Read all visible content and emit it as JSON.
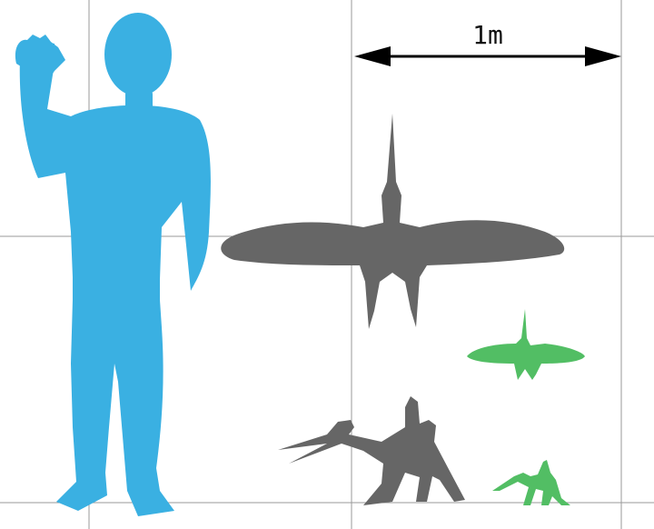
{
  "scale_bar": {
    "label": "1m"
  },
  "colors": {
    "grid": "#9a9a9a",
    "human": "#3ab0e2",
    "large_pterosaur": "#666666",
    "small_pterosaur": "#52be64",
    "arrow": "#000000"
  },
  "figures": [
    {
      "name": "human",
      "color_key": "human"
    },
    {
      "name": "large-pterosaur-flying",
      "color_key": "large_pterosaur"
    },
    {
      "name": "large-pterosaur-standing",
      "color_key": "large_pterosaur"
    },
    {
      "name": "small-pterosaur-flying",
      "color_key": "small_pterosaur"
    },
    {
      "name": "small-pterosaur-standing",
      "color_key": "small_pterosaur"
    }
  ]
}
